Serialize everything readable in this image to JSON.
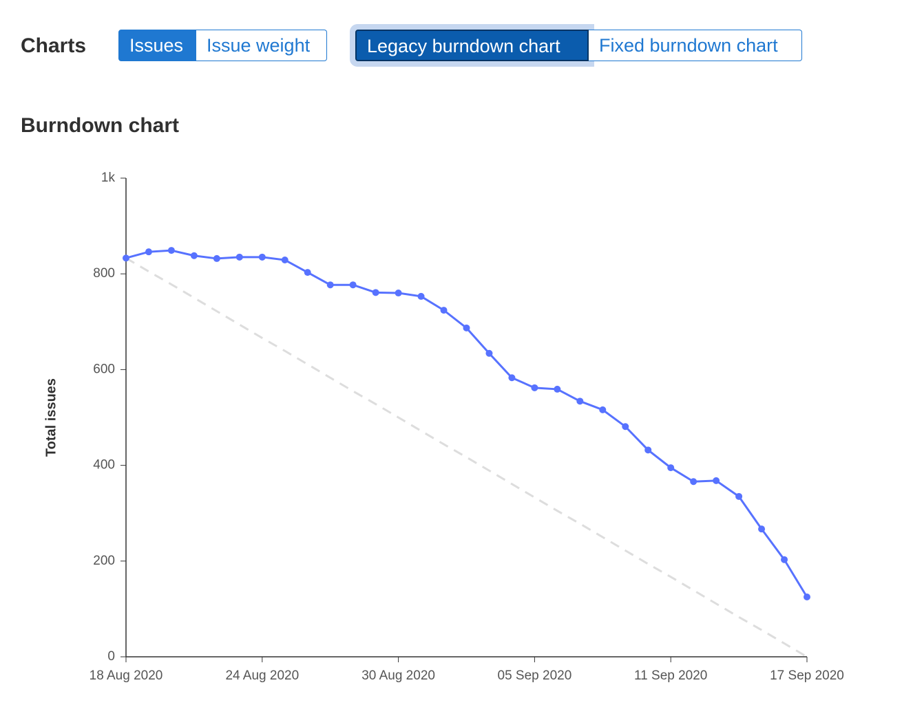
{
  "header": {
    "title": "Charts",
    "issue_buttons": [
      "Issues",
      "Issue weight"
    ],
    "chart_buttons": [
      "Legacy burndown chart",
      "Fixed burndown chart"
    ]
  },
  "chart_data": {
    "type": "line",
    "title": "Burndown chart",
    "y_label": "Total issues",
    "x": [
      "2020-08-18",
      "2020-08-19",
      "2020-08-20",
      "2020-08-21",
      "2020-08-22",
      "2020-08-23",
      "2020-08-24",
      "2020-08-25",
      "2020-08-26",
      "2020-08-27",
      "2020-08-28",
      "2020-08-29",
      "2020-08-30",
      "2020-08-31",
      "2020-09-01",
      "2020-09-02",
      "2020-09-03",
      "2020-09-04",
      "2020-09-05",
      "2020-09-06",
      "2020-09-07",
      "2020-09-08",
      "2020-09-09",
      "2020-09-10",
      "2020-09-11",
      "2020-09-12",
      "2020-09-13",
      "2020-09-14",
      "2020-09-15",
      "2020-09-16",
      "2020-09-17"
    ],
    "series": [
      {
        "color": "#5772ff",
        "values": [
          833,
          846,
          849,
          838,
          832,
          835,
          835,
          829,
          803,
          777,
          777,
          761,
          760,
          753,
          724,
          687,
          634,
          583,
          562,
          559,
          534,
          516,
          481,
          432,
          395,
          366,
          368,
          335,
          267,
          203,
          125
        ]
      },
      {
        "color": "#dddddd",
        "dashed": true,
        "values": [
          833,
          805,
          778,
          750,
          722,
          694,
          666,
          639,
          611,
          583,
          555,
          528,
          500,
          472,
          444,
          417,
          389,
          361,
          333,
          305,
          278,
          250,
          222,
          194,
          167,
          139,
          111,
          83,
          56,
          28,
          0
        ]
      }
    ],
    "xlim": [
      "2020-08-18",
      "2020-09-17"
    ],
    "xticks": [
      {
        "value": "2020-08-18",
        "label": "18 Aug 2020"
      },
      {
        "value": "2020-08-24",
        "label": "24 Aug 2020"
      },
      {
        "value": "2020-08-30",
        "label": "30 Aug 2020"
      },
      {
        "value": "2020-09-05",
        "label": "05 Sep 2020"
      },
      {
        "value": "2020-09-11",
        "label": "11 Sep 2020"
      },
      {
        "value": "2020-09-17",
        "label": "17 Sep 2020"
      }
    ],
    "ylim": [
      0,
      1000
    ],
    "yticks": [
      0,
      200,
      400,
      600,
      800,
      {
        "value": 1000,
        "label": "1k"
      }
    ]
  }
}
